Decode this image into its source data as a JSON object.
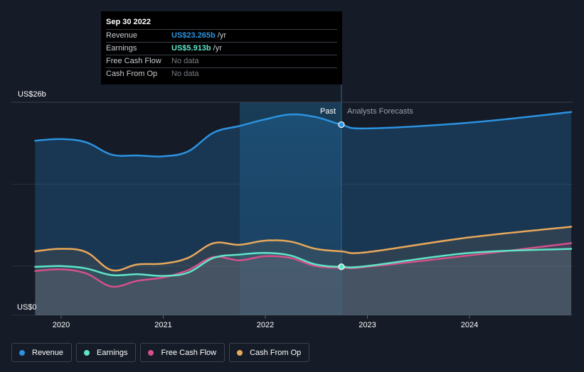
{
  "chart_data": {
    "type": "area",
    "y_max_label": "US$26b",
    "y_min_label": "US$0",
    "ylim": [
      0,
      26
    ],
    "x_ticks": [
      "2020",
      "2021",
      "2022",
      "2023",
      "2024"
    ],
    "region_labels": {
      "past": "Past",
      "forecast": "Analysts Forecasts"
    },
    "divider_date": "2022-09-30",
    "series": [
      {
        "name": "Revenue",
        "color": "#2b93e0",
        "points": [
          [
            "2019-09-30",
            21.3
          ],
          [
            "2019-12-31",
            21.5
          ],
          [
            "2020-03-31",
            21.1
          ],
          [
            "2020-06-30",
            19.6
          ],
          [
            "2020-09-30",
            19.5
          ],
          [
            "2020-12-31",
            19.4
          ],
          [
            "2021-03-31",
            20.0
          ],
          [
            "2021-06-30",
            22.3
          ],
          [
            "2021-09-30",
            23.1
          ],
          [
            "2021-12-31",
            23.9
          ],
          [
            "2022-03-31",
            24.5
          ],
          [
            "2022-06-30",
            24.2
          ],
          [
            "2022-09-30",
            23.265
          ],
          [
            "2022-12-31",
            22.8
          ],
          [
            "2023-12-31",
            23.5
          ],
          [
            "2024-12-31",
            24.8
          ]
        ]
      },
      {
        "name": "Earnings",
        "color": "#5fe5c8",
        "points": [
          [
            "2019-09-30",
            5.9
          ],
          [
            "2019-12-31",
            6.0
          ],
          [
            "2020-03-31",
            5.7
          ],
          [
            "2020-06-30",
            4.9
          ],
          [
            "2020-09-30",
            5.0
          ],
          [
            "2020-12-31",
            4.8
          ],
          [
            "2021-03-31",
            5.2
          ],
          [
            "2021-06-30",
            7.0
          ],
          [
            "2021-09-30",
            7.4
          ],
          [
            "2021-12-31",
            7.6
          ],
          [
            "2022-03-31",
            7.3
          ],
          [
            "2022-06-30",
            6.2
          ],
          [
            "2022-09-30",
            5.913
          ],
          [
            "2022-12-31",
            6.0
          ],
          [
            "2023-12-31",
            7.6
          ],
          [
            "2024-12-31",
            8.1
          ]
        ]
      },
      {
        "name": "Free Cash Flow",
        "color": "#d4508a",
        "points": [
          [
            "2019-09-30",
            5.4
          ],
          [
            "2019-12-31",
            5.6
          ],
          [
            "2020-03-31",
            5.1
          ],
          [
            "2020-06-30",
            3.5
          ],
          [
            "2020-09-30",
            4.2
          ],
          [
            "2020-12-31",
            4.6
          ],
          [
            "2021-03-31",
            5.5
          ],
          [
            "2021-06-30",
            7.1
          ],
          [
            "2021-09-30",
            6.7
          ],
          [
            "2021-12-31",
            7.2
          ],
          [
            "2022-03-31",
            7.0
          ],
          [
            "2022-06-30",
            6.0
          ],
          [
            "2022-09-30",
            5.8
          ],
          [
            "2022-12-31",
            5.9
          ],
          [
            "2023-12-31",
            7.3
          ],
          [
            "2024-12-31",
            8.8
          ]
        ]
      },
      {
        "name": "Cash From Op",
        "color": "#e8a85a",
        "points": [
          [
            "2019-09-30",
            7.8
          ],
          [
            "2019-12-31",
            8.1
          ],
          [
            "2020-03-31",
            7.7
          ],
          [
            "2020-06-30",
            5.5
          ],
          [
            "2020-09-30",
            6.2
          ],
          [
            "2020-12-31",
            6.3
          ],
          [
            "2021-03-31",
            7.0
          ],
          [
            "2021-06-30",
            8.8
          ],
          [
            "2021-09-30",
            8.6
          ],
          [
            "2021-12-31",
            9.1
          ],
          [
            "2022-03-31",
            9.0
          ],
          [
            "2022-06-30",
            8.1
          ],
          [
            "2022-09-30",
            7.8
          ],
          [
            "2022-12-31",
            7.7
          ],
          [
            "2023-12-31",
            9.5
          ],
          [
            "2024-12-31",
            10.8
          ]
        ]
      }
    ]
  },
  "tooltip": {
    "date": "Sep 30 2022",
    "rows": [
      {
        "label": "Revenue",
        "value": "US$23.265b",
        "unit": "/yr",
        "color": "#2b93e0"
      },
      {
        "label": "Earnings",
        "value": "US$5.913b",
        "unit": "/yr",
        "color": "#5fe5c8"
      },
      {
        "label": "Free Cash Flow",
        "nodata": "No data"
      },
      {
        "label": "Cash From Op",
        "nodata": "No data"
      }
    ]
  },
  "legend": [
    {
      "label": "Revenue",
      "color": "#2b93e0"
    },
    {
      "label": "Earnings",
      "color": "#5fe5c8"
    },
    {
      "label": "Free Cash Flow",
      "color": "#d4508a"
    },
    {
      "label": "Cash From Op",
      "color": "#e8a85a"
    }
  ]
}
